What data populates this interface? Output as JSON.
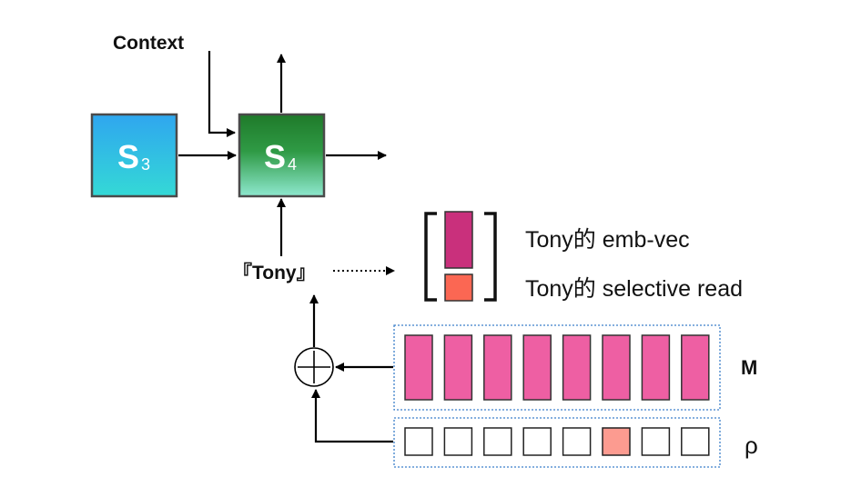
{
  "states": {
    "s3": {
      "letter": "S",
      "subscript": "3"
    },
    "s4": {
      "letter": "S",
      "subscript": "4"
    }
  },
  "labels": {
    "context": "Context",
    "input_word": "『Tony』",
    "emb_vec": "Tony的 emb-vec",
    "selective_read": "Tony的 selective read",
    "memory": "M",
    "rho": "ρ"
  },
  "memory": {
    "cell_count": 8,
    "fill_color": "#ee5fa3"
  },
  "rho": {
    "cell_count": 8,
    "highlighted_index": 5,
    "highlight_color": "#fc9b90"
  },
  "colors": {
    "s3_top": "#2fa6ef",
    "s3_bottom": "#34d9d6",
    "s4_top": "#1f7a2a",
    "s4_bottom": "#8ee8cf",
    "emb_vec": "#c9307c",
    "selective_read": "#fb6753",
    "dashed_border": "#3c7fc9"
  }
}
